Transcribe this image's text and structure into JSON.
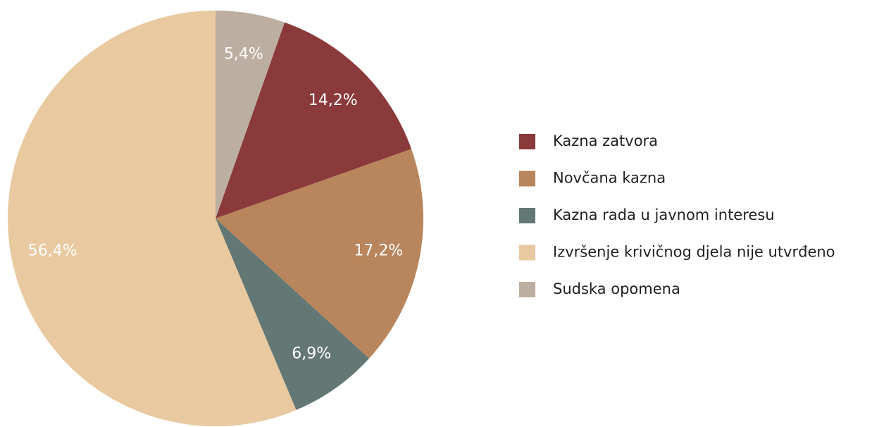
{
  "chart_data": {
    "type": "pie",
    "categories": [
      "Kazna zatvora",
      "Novčana kazna",
      "Kazna rada u javnom interesu",
      "Izvršenje krivičnog djela nije utvrđeno",
      "Sudska opomena"
    ],
    "values": [
      14.2,
      17.2,
      6.9,
      56.4,
      5.4
    ],
    "value_labels": [
      "14,2%",
      "17,2%",
      "6,9%",
      "56,4%",
      "5,4%"
    ],
    "colors": [
      "#8b3a3c",
      "#b8855c",
      "#637774",
      "#e8c9a0",
      "#bcaea0"
    ],
    "legend": "right"
  }
}
